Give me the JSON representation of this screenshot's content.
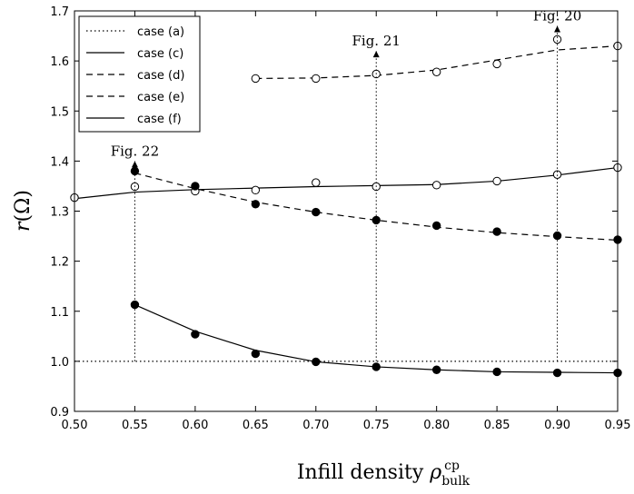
{
  "chart_data": {
    "type": "line",
    "xlabel_text": "Infill density ",
    "xlabel_symbol": "ρ",
    "xlabel_sub": "bulk",
    "xlabel_sup": "cp",
    "ylabel_symbol": "r",
    "ylabel_rest": "(Ω)",
    "xlim": [
      0.5,
      0.95
    ],
    "ylim": [
      0.9,
      1.7
    ],
    "x_ticks": [
      "0.50",
      "0.55",
      "0.60",
      "0.65",
      "0.70",
      "0.75",
      "0.80",
      "0.85",
      "0.90",
      "0.95"
    ],
    "y_ticks": [
      "0.9",
      "1.0",
      "1.1",
      "1.2",
      "1.3",
      "1.4",
      "1.5",
      "1.6",
      "1.7"
    ],
    "grid": false,
    "legend_position": "top-left",
    "series": [
      {
        "name": "case (a)",
        "style": "dotted",
        "marker": "none",
        "points": [
          [
            0.5,
            1.0
          ],
          [
            0.95,
            1.0
          ]
        ]
      },
      {
        "name": "case (c)",
        "style": "solid",
        "marker": "open",
        "points": [
          [
            0.5,
            1.327
          ],
          [
            0.55,
            1.349
          ],
          [
            0.6,
            1.34
          ],
          [
            0.65,
            1.342
          ],
          [
            0.7,
            1.357
          ],
          [
            0.75,
            1.349
          ],
          [
            0.8,
            1.352
          ],
          [
            0.85,
            1.36
          ],
          [
            0.9,
            1.373
          ],
          [
            0.95,
            1.387
          ]
        ],
        "fit": [
          [
            0.5,
            1.325
          ],
          [
            0.55,
            1.338
          ],
          [
            0.6,
            1.343
          ],
          [
            0.65,
            1.346
          ],
          [
            0.7,
            1.349
          ],
          [
            0.75,
            1.351
          ],
          [
            0.8,
            1.353
          ],
          [
            0.85,
            1.36
          ],
          [
            0.9,
            1.372
          ],
          [
            0.95,
            1.387
          ]
        ]
      },
      {
        "name": "case (d)",
        "style": "dashed",
        "marker": "filled",
        "points": [
          [
            0.55,
            1.38
          ],
          [
            0.6,
            1.35
          ],
          [
            0.65,
            1.314
          ],
          [
            0.7,
            1.298
          ],
          [
            0.75,
            1.282
          ],
          [
            0.8,
            1.271
          ],
          [
            0.85,
            1.259
          ],
          [
            0.9,
            1.251
          ],
          [
            0.95,
            1.243
          ]
        ],
        "fit": [
          [
            0.55,
            1.376
          ],
          [
            0.6,
            1.345
          ],
          [
            0.65,
            1.318
          ],
          [
            0.7,
            1.298
          ],
          [
            0.75,
            1.282
          ],
          [
            0.8,
            1.268
          ],
          [
            0.85,
            1.257
          ],
          [
            0.9,
            1.249
          ],
          [
            0.95,
            1.242
          ]
        ]
      },
      {
        "name": "case (e)",
        "style": "dashed",
        "marker": "open",
        "points": [
          [
            0.65,
            1.565
          ],
          [
            0.7,
            1.565
          ],
          [
            0.75,
            1.574
          ],
          [
            0.8,
            1.578
          ],
          [
            0.85,
            1.594
          ],
          [
            0.9,
            1.643
          ],
          [
            0.95,
            1.63
          ]
        ],
        "fit": [
          [
            0.65,
            1.565
          ],
          [
            0.7,
            1.566
          ],
          [
            0.75,
            1.571
          ],
          [
            0.8,
            1.582
          ],
          [
            0.85,
            1.602
          ],
          [
            0.9,
            1.622
          ],
          [
            0.95,
            1.63
          ]
        ]
      },
      {
        "name": "case (f)",
        "style": "solid",
        "marker": "filled",
        "points": [
          [
            0.55,
            1.113
          ],
          [
            0.6,
            1.054
          ],
          [
            0.65,
            1.015
          ],
          [
            0.7,
            0.999
          ],
          [
            0.75,
            0.989
          ],
          [
            0.8,
            0.983
          ],
          [
            0.85,
            0.979
          ],
          [
            0.9,
            0.977
          ],
          [
            0.95,
            0.977
          ]
        ],
        "fit": [
          [
            0.55,
            1.113
          ],
          [
            0.6,
            1.06
          ],
          [
            0.65,
            1.022
          ],
          [
            0.7,
            0.999
          ],
          [
            0.75,
            0.989
          ],
          [
            0.8,
            0.983
          ],
          [
            0.85,
            0.979
          ],
          [
            0.9,
            0.978
          ],
          [
            0.95,
            0.977
          ]
        ]
      }
    ],
    "annotations": [
      {
        "text": "Fig. 22",
        "x": 0.55,
        "y_from": 1.0,
        "y_to": 1.4
      },
      {
        "text": "Fig. 21",
        "x": 0.75,
        "y_from": 1.0,
        "y_to": 1.62
      },
      {
        "text": "Fig. 20",
        "x": 0.9,
        "y_from": 1.0,
        "y_to": 1.67
      }
    ]
  }
}
